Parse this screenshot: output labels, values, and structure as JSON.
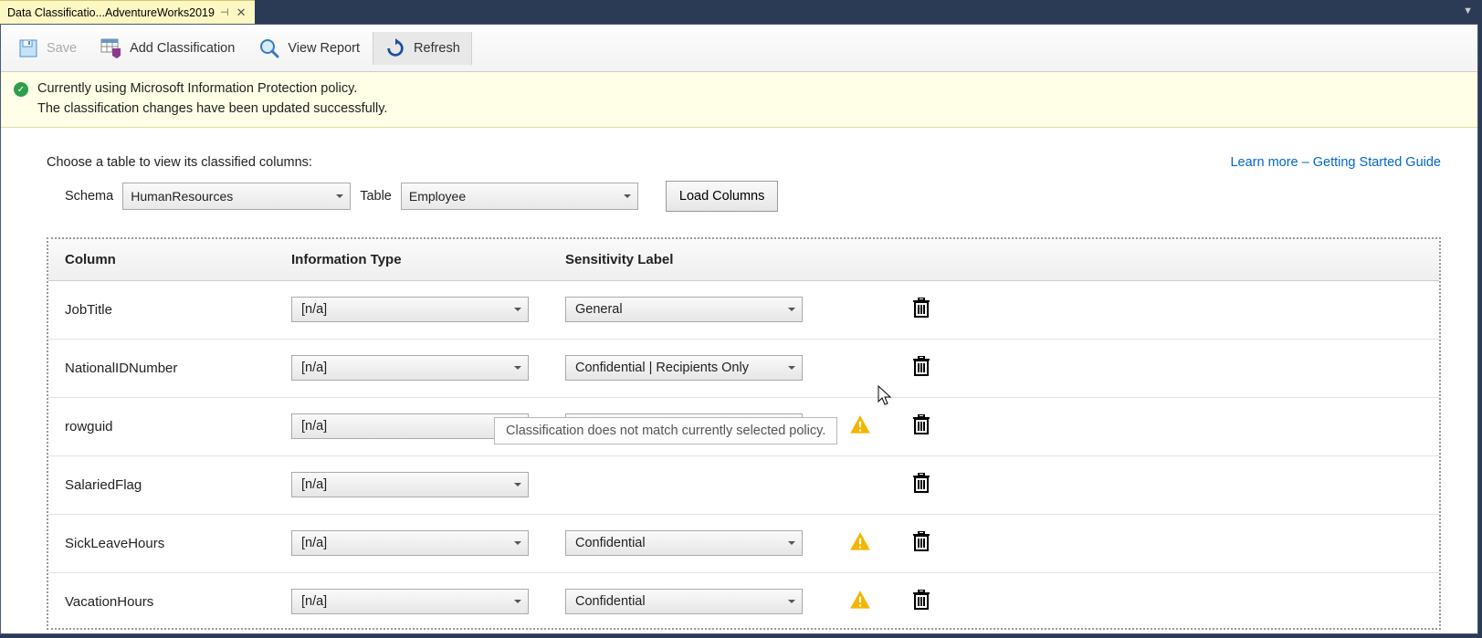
{
  "tab": {
    "title": "Data Classificatio...AdventureWorks2019"
  },
  "toolbar": {
    "save": "Save",
    "add": "Add Classification",
    "view_report": "View Report",
    "refresh": "Refresh"
  },
  "notification": {
    "line1": "Currently using Microsoft Information Protection policy.",
    "line2": "The classification changes have been updated successfully."
  },
  "prompt": "Choose a table to view its classified columns:",
  "learn_more": "Learn more – Getting Started Guide",
  "schema": {
    "label": "Schema",
    "value": "HumanResources"
  },
  "table": {
    "label": "Table",
    "value": "Employee"
  },
  "load_btn": "Load Columns",
  "headers": {
    "col": "Column",
    "info": "Information Type",
    "sens": "Sensitivity Label"
  },
  "rows": [
    {
      "name": "JobTitle",
      "info": "[n/a]",
      "sens": "General",
      "warn": false
    },
    {
      "name": "NationalIDNumber",
      "info": "[n/a]",
      "sens": "Confidential | Recipients Only",
      "warn": false
    },
    {
      "name": "rowguid",
      "info": "[n/a]",
      "sens": "Confidential",
      "warn": true
    },
    {
      "name": "SalariedFlag",
      "info": "[n/a]",
      "sens": "",
      "warn": false
    },
    {
      "name": "SickLeaveHours",
      "info": "[n/a]",
      "sens": "Confidential",
      "warn": true
    },
    {
      "name": "VacationHours",
      "info": "[n/a]",
      "sens": "Confidential",
      "warn": true
    }
  ],
  "tooltip": "Classification does not match currently selected policy.",
  "colors": {
    "tab_bg": "#fdf7c4",
    "frame_bg": "#2b3a55",
    "notif_bg": "#feffe6",
    "link": "#0066cc",
    "warn": "#f5b400"
  }
}
